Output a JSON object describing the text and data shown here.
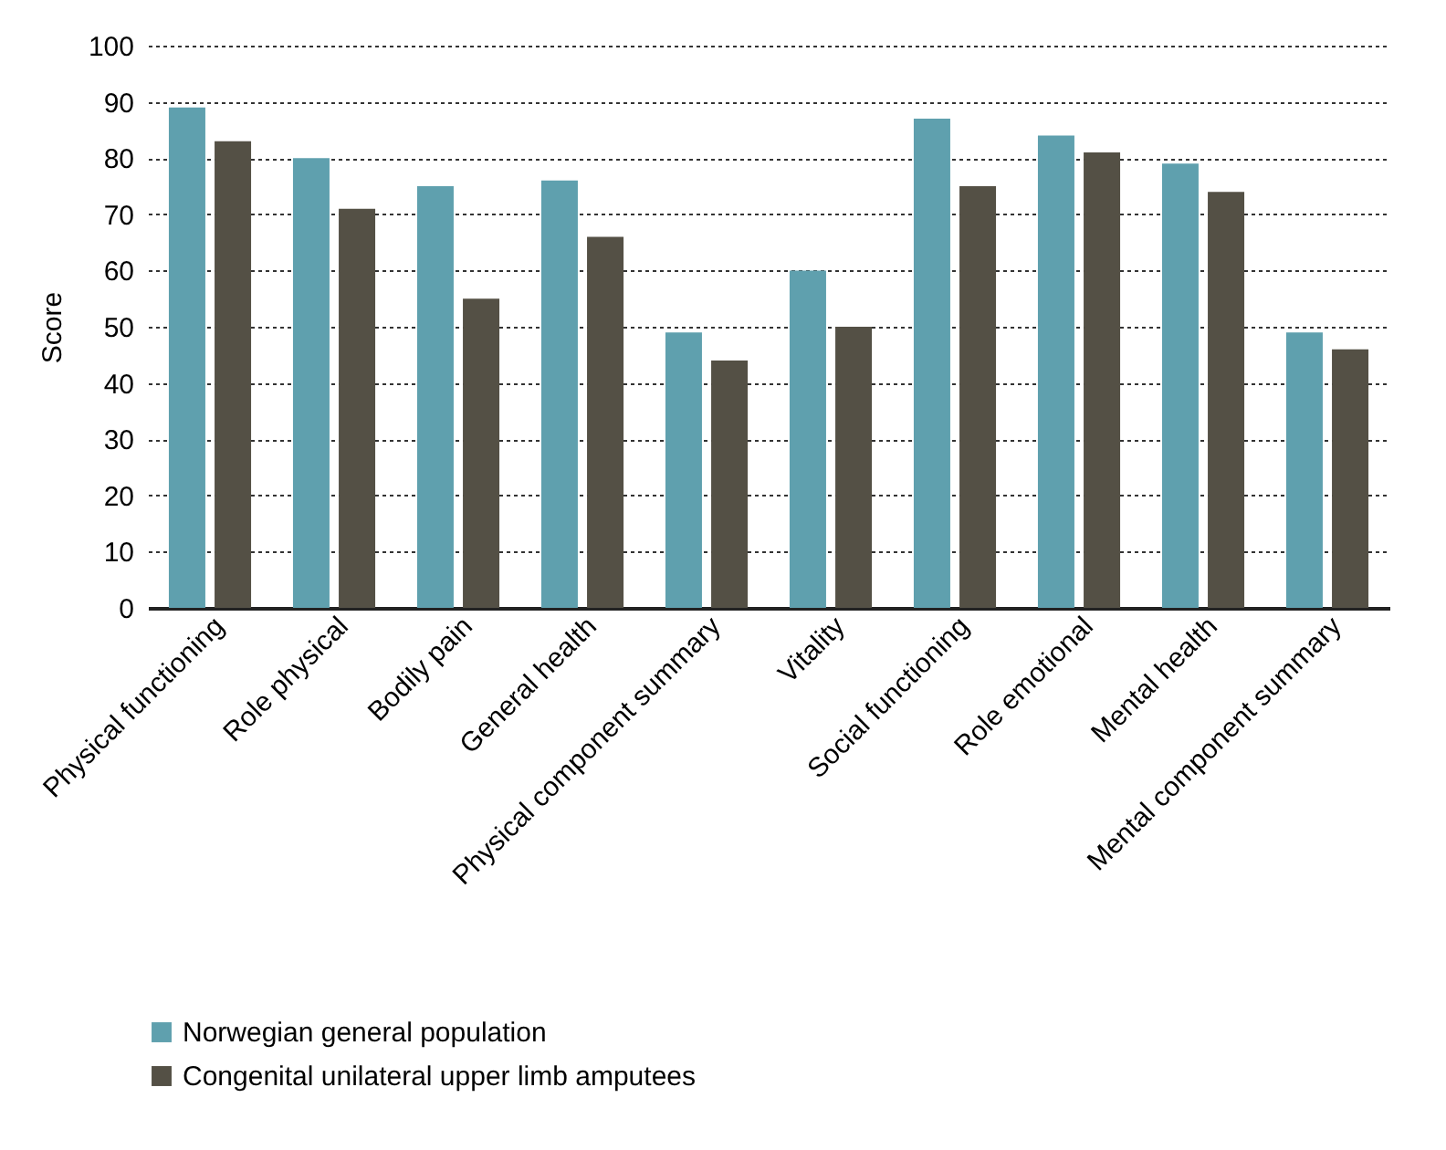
{
  "chart_data": {
    "type": "bar",
    "ylabel": "Score",
    "categories": [
      "Physical functioning",
      "Role physical",
      "Bodily pain",
      "General health",
      "Physical component summary",
      "Vitality",
      "Social functioning",
      "Role emotional",
      "Mental health",
      "Mental component summary"
    ],
    "series": [
      {
        "name": "Norwegian general population",
        "color": "#5fa0ae",
        "values": [
          89,
          80,
          75,
          76,
          49,
          60,
          87,
          84,
          79,
          49
        ]
      },
      {
        "name": "Congenital unilateral upper limb amputees",
        "color": "#545045",
        "values": [
          83,
          71,
          55,
          66,
          44,
          50,
          75,
          81,
          74,
          46
        ]
      }
    ],
    "ylim": [
      0,
      100
    ],
    "yticks": [
      0,
      10,
      20,
      30,
      40,
      50,
      60,
      70,
      80,
      90,
      100
    ],
    "grid": "y",
    "legend": "bottom"
  }
}
